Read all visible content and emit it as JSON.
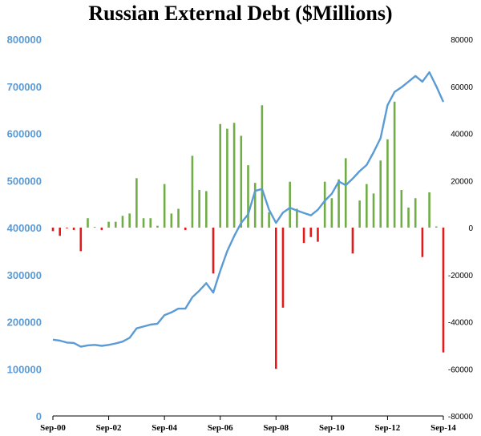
{
  "chart_data": {
    "type": "line+bar",
    "title": "Russian External Debt ($Millions)",
    "colors": {
      "line": "#5b9bd5",
      "positive_bar": "#70ad47",
      "negative_bar": "#e31a1c"
    },
    "x_ticks": [
      "Sep-00",
      "Sep-02",
      "Sep-04",
      "Sep-06",
      "Sep-08",
      "Sep-10",
      "Sep-12",
      "Sep-14"
    ],
    "y_left": {
      "ticks": [
        "0",
        "100000",
        "200000",
        "300000",
        "400000",
        "500000",
        "600000",
        "700000",
        "800000"
      ],
      "ylim": [
        0,
        800000
      ]
    },
    "y_right": {
      "ticks": [
        "-80000",
        "-60000",
        "-40000",
        "-20000",
        "0",
        "20000",
        "40000",
        "60000",
        "80000"
      ],
      "ylim": [
        -80000,
        80000
      ]
    },
    "x_range": [
      "2000-09",
      "2014-09"
    ],
    "series": [
      {
        "type": "line",
        "axis": "left",
        "x": [
          "2000-09",
          "2000-12",
          "2001-03",
          "2001-06",
          "2001-09",
          "2001-12",
          "2002-03",
          "2002-06",
          "2002-09",
          "2002-12",
          "2003-03",
          "2003-06",
          "2003-09",
          "2003-12",
          "2004-03",
          "2004-06",
          "2004-09",
          "2004-12",
          "2005-03",
          "2005-06",
          "2005-09",
          "2005-12",
          "2006-03",
          "2006-06",
          "2006-09",
          "2006-12",
          "2007-03",
          "2007-06",
          "2007-09",
          "2007-12",
          "2008-03",
          "2008-06",
          "2008-09",
          "2008-12",
          "2009-03",
          "2009-06",
          "2009-09",
          "2009-12",
          "2010-03",
          "2010-06",
          "2010-09",
          "2010-12",
          "2011-03",
          "2011-06",
          "2011-09",
          "2011-12",
          "2012-03",
          "2012-06",
          "2012-09",
          "2012-12",
          "2013-03",
          "2013-06",
          "2013-09",
          "2013-12",
          "2014-03",
          "2014-06",
          "2014-09"
        ],
        "values": [
          162000,
          160000,
          156000,
          155000,
          147000,
          150000,
          151000,
          149000,
          151000,
          154000,
          158000,
          166000,
          186000,
          190000,
          194000,
          196000,
          214000,
          220000,
          228000,
          228000,
          252000,
          266000,
          282000,
          262000,
          308000,
          350000,
          382000,
          410000,
          428000,
          478000,
          482000,
          438000,
          410000,
          432000,
          442000,
          436000,
          431000,
          426000,
          438000,
          457000,
          472000,
          498000,
          490000,
          504000,
          520000,
          533000,
          560000,
          590000,
          660000,
          688000,
          698000,
          710000,
          722000,
          710000,
          730000,
          700000,
          667000
        ]
      },
      {
        "type": "bar",
        "axis": "right",
        "x": [
          "2000-09",
          "2000-12",
          "2001-03",
          "2001-06",
          "2001-09",
          "2001-12",
          "2002-03",
          "2002-06",
          "2002-09",
          "2002-12",
          "2003-03",
          "2003-06",
          "2003-09",
          "2003-12",
          "2004-03",
          "2004-06",
          "2004-09",
          "2004-12",
          "2005-03",
          "2005-06",
          "2005-09",
          "2005-12",
          "2006-03",
          "2006-06",
          "2006-09",
          "2006-12",
          "2007-03",
          "2007-06",
          "2007-09",
          "2007-12",
          "2008-03",
          "2008-06",
          "2008-09",
          "2008-12",
          "2009-03",
          "2009-06",
          "2009-09",
          "2009-12",
          "2010-03",
          "2010-06",
          "2010-09",
          "2010-12",
          "2011-03",
          "2011-06",
          "2011-09",
          "2011-12",
          "2012-03",
          "2012-06",
          "2012-09",
          "2012-12",
          "2013-03",
          "2013-06",
          "2013-09",
          "2013-12",
          "2014-03",
          "2014-06",
          "2014-09"
        ],
        "values": [
          -1500,
          -3500,
          -300,
          -1000,
          -10000,
          4000,
          300,
          -1000,
          2500,
          2500,
          5000,
          6000,
          21000,
          4000,
          4000,
          800,
          18500,
          6000,
          8000,
          -1000,
          30500,
          16000,
          15500,
          -19500,
          44000,
          42000,
          44500,
          39000,
          26500,
          19000,
          52000,
          6500,
          -60000,
          -34000,
          19500,
          8000,
          -6500,
          -4000,
          -6000,
          19500,
          12500,
          20500,
          29500,
          -11000,
          11500,
          18500,
          14500,
          28500,
          37500,
          53500,
          16000,
          8500,
          12500,
          -12500,
          15000,
          500,
          -53000
        ]
      }
    ]
  }
}
